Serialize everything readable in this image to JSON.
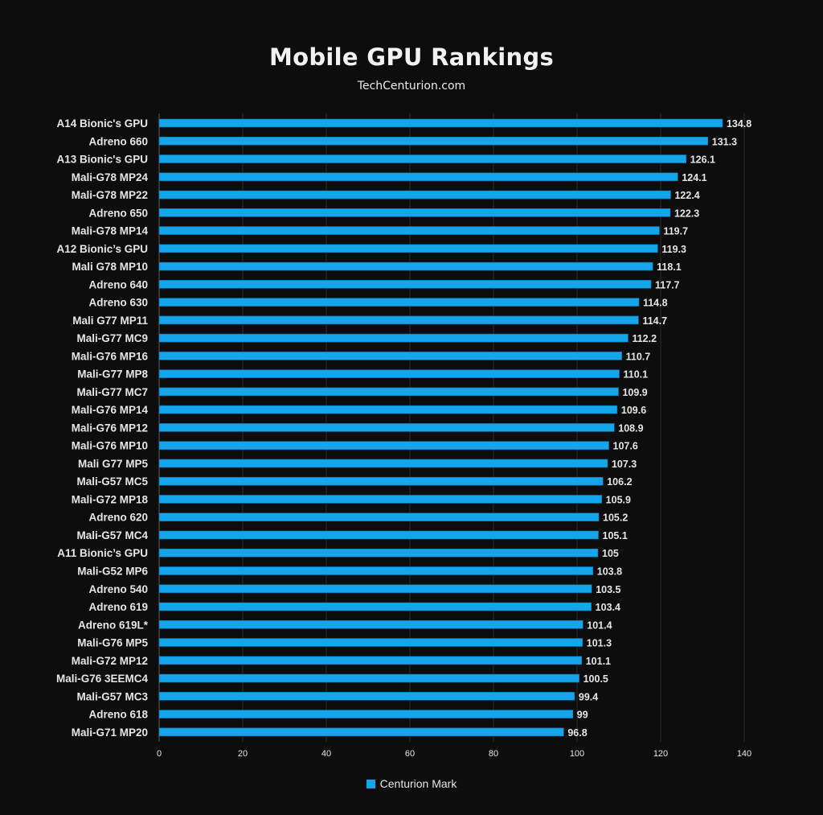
{
  "colors": {
    "background": "#0d0d0d",
    "bar": "#14a5ea",
    "bar_edge": "#0b6fa6",
    "text": "#e6e6e6",
    "grid": "#2a2a2a"
  },
  "chart_data": {
    "type": "bar",
    "orientation": "horizontal",
    "title": "Mobile GPU Rankings",
    "subtitle": "TechCenturion.com",
    "categories": [
      "A14 Bionic's GPU",
      "Adreno 660",
      "A13 Bionic's GPU",
      "Mali-G78 MP24",
      "Mali-G78 MP22",
      "Adreno 650",
      "Mali-G78 MP14",
      "A12 Bionic’s GPU",
      "Mali G78 MP10",
      "Adreno 640",
      "Adreno 630",
      "Mali G77 MP11",
      "Mali-G77 MC9",
      "Mali-G76 MP16",
      "Mali-G77 MP8",
      "Mali-G77 MC7",
      "Mali-G76 MP14",
      "Mali-G76 MP12",
      "Mali-G76 MP10",
      "Mali G77 MP5",
      "Mali-G57 MC5",
      "Mali-G72 MP18",
      "Adreno 620",
      "Mali-G57 MC4",
      "A11 Bionic’s GPU",
      "Mali-G52 MP6",
      "Adreno 540",
      "Adreno 619",
      "Adreno 619L*",
      "Mali-G76 MP5",
      "Mali-G72 MP12",
      "Mali-G76 3EEMC4",
      "Mali-G57 MC3",
      "Adreno 618",
      "Mali-G71 MP20"
    ],
    "series": [
      {
        "name": "Centurion Mark",
        "values": [
          134.8,
          131.3,
          126.1,
          124.1,
          122.4,
          122.3,
          119.7,
          119.3,
          118.1,
          117.7,
          114.8,
          114.7,
          112.2,
          110.7,
          110.1,
          109.9,
          109.6,
          108.9,
          107.6,
          107.3,
          106.2,
          105.9,
          105.2,
          105.1,
          105,
          103.8,
          103.5,
          103.4,
          101.4,
          101.3,
          101.1,
          100.5,
          99.4,
          99,
          96.8
        ]
      }
    ],
    "value_labels": [
      "134.8",
      "131.3",
      "126.1",
      "124.1",
      "122.4",
      "122.3",
      "119.7",
      "119.3",
      "118.1",
      "117.7",
      "114.8",
      "114.7",
      "112.2",
      "110.7",
      "110.1",
      "109.9",
      "109.6",
      "108.9",
      "107.6",
      "107.3",
      "106.2",
      "105.9",
      "105.2",
      "105.1",
      "105",
      "103.8",
      "103.5",
      "103.4",
      "101.4",
      "101.3",
      "101.1",
      "100.5",
      "99.4",
      "99",
      "96.8"
    ],
    "xlim": [
      0,
      140
    ],
    "xticks": [
      "0",
      "20",
      "40",
      "60",
      "80",
      "100",
      "120",
      "140"
    ],
    "grid": true,
    "legend": "bottom-center"
  }
}
